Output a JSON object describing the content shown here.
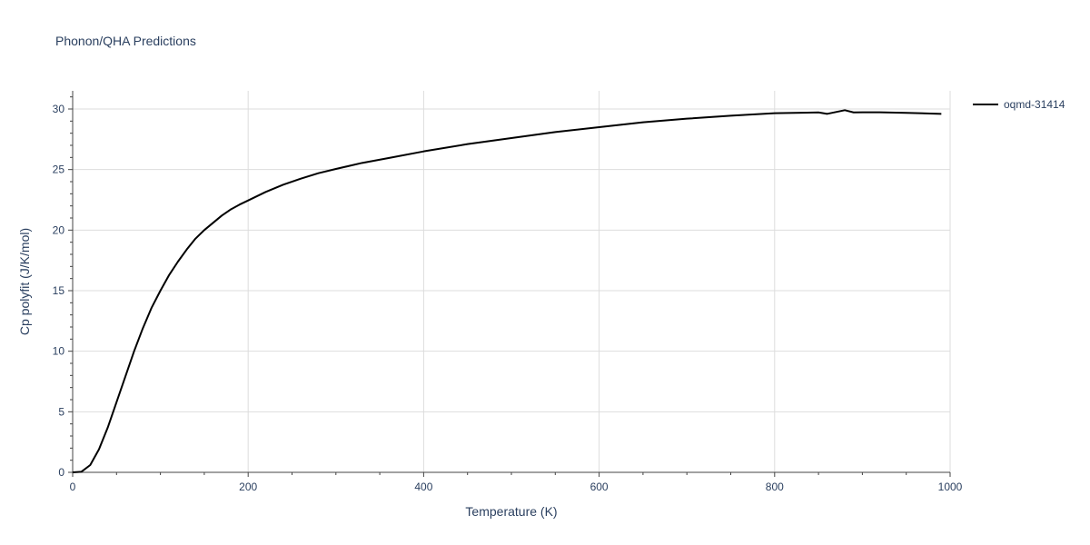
{
  "chart_data": {
    "type": "line",
    "title": "Phonon/QHA Predictions",
    "xlabel": "Temperature (K)",
    "ylabel": "Cp polyfit (J/K/mol)",
    "xlim": [
      0,
      1000
    ],
    "ylim": [
      0,
      31.5
    ],
    "grid": true,
    "legend_position": "top-right",
    "x_ticks": [
      {
        "value": 0,
        "label": "0"
      },
      {
        "value": 200,
        "label": "200"
      },
      {
        "value": 400,
        "label": "400"
      },
      {
        "value": 600,
        "label": "600"
      },
      {
        "value": 800,
        "label": "800"
      },
      {
        "value": 1000,
        "label": "1000"
      }
    ],
    "y_ticks": [
      {
        "value": 0,
        "label": "0"
      },
      {
        "value": 5,
        "label": "5"
      },
      {
        "value": 10,
        "label": "10"
      },
      {
        "value": 15,
        "label": "15"
      },
      {
        "value": 20,
        "label": "20"
      },
      {
        "value": 25,
        "label": "25"
      },
      {
        "value": 30,
        "label": "30"
      }
    ],
    "series": [
      {
        "name": "oqmd-31414",
        "color": "#000000",
        "x": [
          0,
          10,
          20,
          30,
          40,
          50,
          60,
          70,
          80,
          90,
          100,
          110,
          120,
          130,
          140,
          150,
          160,
          170,
          180,
          190,
          200,
          220,
          240,
          260,
          280,
          300,
          330,
          360,
          400,
          450,
          500,
          550,
          600,
          650,
          700,
          750,
          800,
          850,
          860,
          870,
          880,
          890,
          900,
          920,
          950,
          990
        ],
        "y": [
          0,
          0.05,
          0.6,
          1.9,
          3.7,
          5.8,
          7.9,
          10.0,
          11.9,
          13.6,
          15.0,
          16.3,
          17.4,
          18.4,
          19.3,
          20.0,
          20.6,
          21.2,
          21.7,
          22.1,
          22.45,
          23.15,
          23.75,
          24.25,
          24.7,
          25.05,
          25.55,
          25.95,
          26.5,
          27.1,
          27.6,
          28.1,
          28.5,
          28.9,
          29.2,
          29.45,
          29.65,
          29.72,
          29.6,
          29.75,
          29.9,
          29.72,
          29.73,
          29.73,
          29.68,
          29.6
        ]
      }
    ]
  }
}
